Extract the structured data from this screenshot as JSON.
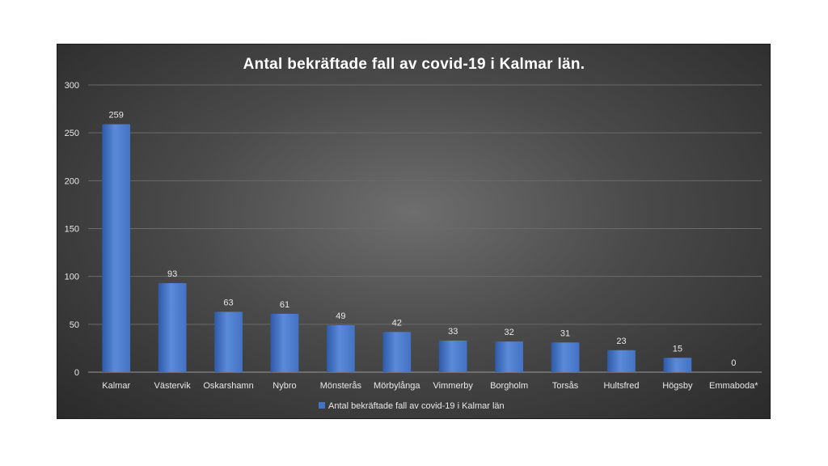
{
  "chart_data": {
    "type": "bar",
    "title": "Antal bekräftade  fall av covid-19  i Kalmar län.",
    "categories": [
      "Kalmar",
      "Västervik",
      "Oskarshamn",
      "Nybro",
      "Mönsterås",
      "Mörbylånga",
      "Vimmerby",
      "Borgholm",
      "Torsås",
      "Hultsfred",
      "Högsby",
      "Emmaboda*"
    ],
    "series": [
      {
        "name": "Antal bekräftade fall av covid-19 i Kalmar län",
        "values": [
          259,
          93,
          63,
          61,
          49,
          42,
          33,
          32,
          31,
          23,
          15,
          0
        ]
      }
    ],
    "data_labels": [
      "259",
      "93",
      "63",
      "61",
      "49",
      "42",
      "33",
      "32",
      "31",
      "23",
      "15",
      "0"
    ],
    "y_ticks": [
      "0",
      "50",
      "100",
      "150",
      "200",
      "250",
      "300"
    ],
    "ylim": [
      0,
      300
    ],
    "grid": true,
    "legend_position": "bottom",
    "colors": {
      "bar": "#4472c4",
      "bar_light": "#5b8ad8",
      "bar_dark": "#2f5aa8",
      "grid": "#6a6a6a",
      "text": "#e8e8e8"
    }
  }
}
